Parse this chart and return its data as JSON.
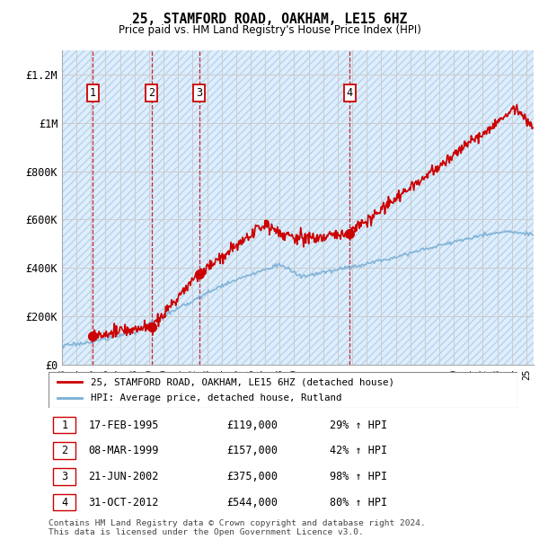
{
  "title": "25, STAMFORD ROAD, OAKHAM, LE15 6HZ",
  "subtitle": "Price paid vs. HM Land Registry's House Price Index (HPI)",
  "xlim_start": 1993,
  "xlim_end": 2025.5,
  "ylim": [
    0,
    1300000
  ],
  "yticks": [
    0,
    200000,
    400000,
    600000,
    800000,
    1000000,
    1200000
  ],
  "ytick_labels": [
    "£0",
    "£200K",
    "£400K",
    "£600K",
    "£800K",
    "£1M",
    "£1.2M"
  ],
  "sale_dates_num": [
    1995.12,
    1999.18,
    2002.47,
    2012.83
  ],
  "sale_prices": [
    119000,
    157000,
    375000,
    544000
  ],
  "sale_labels": [
    "1",
    "2",
    "3",
    "4"
  ],
  "sale_info": [
    [
      "1",
      "17-FEB-1995",
      "£119,000",
      "29% ↑ HPI"
    ],
    [
      "2",
      "08-MAR-1999",
      "£157,000",
      "42% ↑ HPI"
    ],
    [
      "3",
      "21-JUN-2002",
      "£375,000",
      "98% ↑ HPI"
    ],
    [
      "4",
      "31-OCT-2012",
      "£544,000",
      "80% ↑ HPI"
    ]
  ],
  "legend_line1": "25, STAMFORD ROAD, OAKHAM, LE15 6HZ (detached house)",
  "legend_line2": "HPI: Average price, detached house, Rutland",
  "footer": "Contains HM Land Registry data © Crown copyright and database right 2024.\nThis data is licensed under the Open Government Licence v3.0.",
  "red_color": "#cc0000",
  "blue_color": "#7aafd4",
  "chart_bg": "#ddeeff",
  "grid_color": "#cccccc",
  "hatch_color": "#b8cfe0"
}
